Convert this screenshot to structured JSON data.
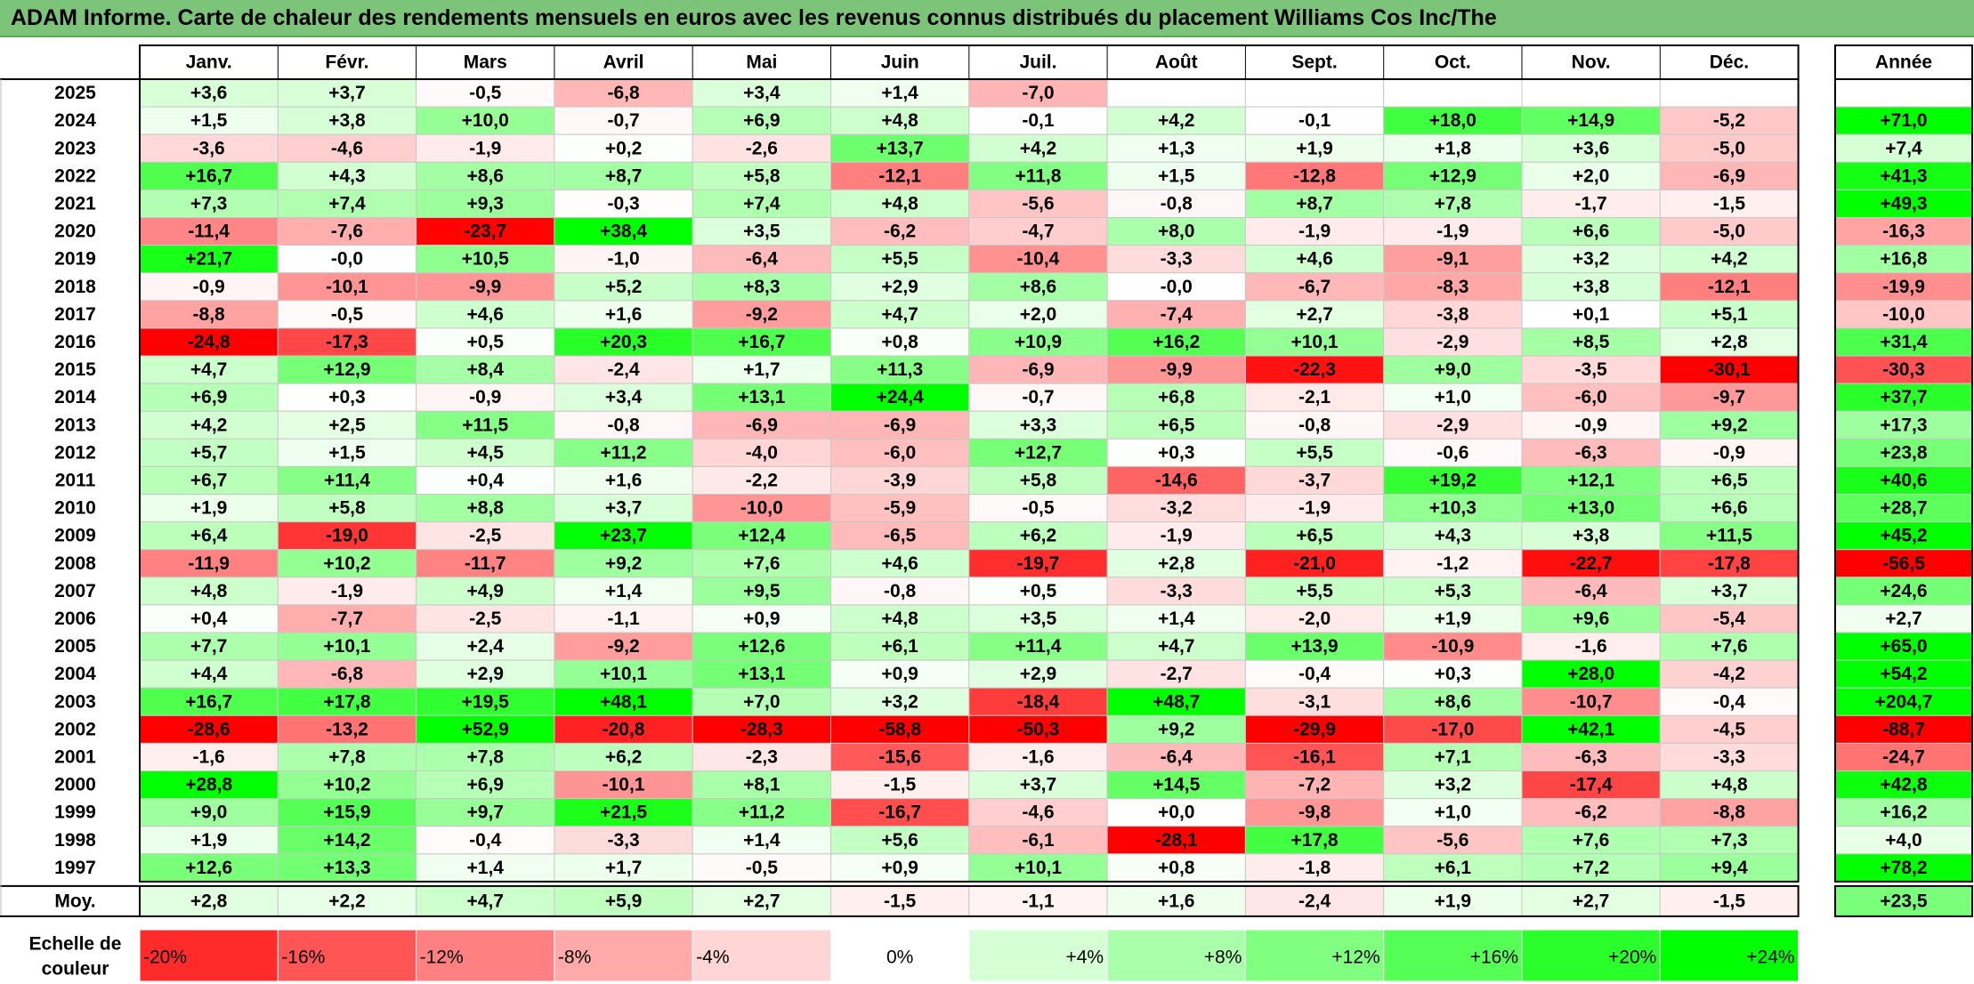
{
  "title": "ADAM Informe. Carte de chaleur des rendements mensuels en euros avec les revenus connus distribués du placement Williams Cos Inc/The",
  "colors": {
    "title_bar": "#7cc47a",
    "negative_max": "#ff0000",
    "neutral": "#ffffff",
    "positive_max": "#00ff00"
  },
  "chart_data": {
    "type": "heatmap",
    "title": "ADAM Informe. Carte de chaleur des rendements mensuels en euros avec les revenus connus distribués du placement Williams Cos Inc/The",
    "months": [
      "Janv.",
      "Févr.",
      "Mars",
      "Avril",
      "Mai",
      "Juin",
      "Juil.",
      "Août",
      "Sept.",
      "Oct.",
      "Nov.",
      "Déc."
    ],
    "year_header": "Année",
    "rows": [
      {
        "year": "2025",
        "values": [
          "+3,6",
          "+3,7",
          "-0,5",
          "-6,8",
          "+3,4",
          "+1,4",
          "-7,0",
          "",
          "",
          "",
          "",
          ""
        ],
        "annual": ""
      },
      {
        "year": "2024",
        "values": [
          "+1,5",
          "+3,8",
          "+10,0",
          "-0,7",
          "+6,9",
          "+4,8",
          "-0,1",
          "+4,2",
          "-0,1",
          "+18,0",
          "+14,9",
          "-5,2"
        ],
        "annual": "+71,0"
      },
      {
        "year": "2023",
        "values": [
          "-3,6",
          "-4,6",
          "-1,9",
          "+0,2",
          "-2,6",
          "+13,7",
          "+4,2",
          "+1,3",
          "+1,9",
          "+1,8",
          "+3,6",
          "-5,0"
        ],
        "annual": "+7,4"
      },
      {
        "year": "2022",
        "values": [
          "+16,7",
          "+4,3",
          "+8,6",
          "+8,7",
          "+5,8",
          "-12,1",
          "+11,8",
          "+1,5",
          "-12,8",
          "+12,9",
          "+2,0",
          "-6,9"
        ],
        "annual": "+41,3"
      },
      {
        "year": "2021",
        "values": [
          "+7,3",
          "+7,4",
          "+9,3",
          "-0,3",
          "+7,4",
          "+4,8",
          "-5,6",
          "-0,8",
          "+8,7",
          "+7,8",
          "-1,7",
          "-1,5"
        ],
        "annual": "+49,3"
      },
      {
        "year": "2020",
        "values": [
          "-11,4",
          "-7,6",
          "-23,7",
          "+38,4",
          "+3,5",
          "-6,2",
          "-4,7",
          "+8,0",
          "-1,9",
          "-1,9",
          "+6,6",
          "-5,0"
        ],
        "annual": "-16,3"
      },
      {
        "year": "2019",
        "values": [
          "+21,7",
          "-0,0",
          "+10,5",
          "-1,0",
          "-6,4",
          "+5,5",
          "-10,4",
          "-3,3",
          "+4,6",
          "-9,1",
          "+3,2",
          "+4,2"
        ],
        "annual": "+16,8"
      },
      {
        "year": "2018",
        "values": [
          "-0,9",
          "-10,1",
          "-9,9",
          "+5,2",
          "+8,3",
          "+2,9",
          "+8,6",
          "-0,0",
          "-6,7",
          "-8,3",
          "+3,8",
          "-12,1"
        ],
        "annual": "-19,9"
      },
      {
        "year": "2017",
        "values": [
          "-8,8",
          "-0,5",
          "+4,6",
          "+1,6",
          "-9,2",
          "+4,7",
          "+2,0",
          "-7,4",
          "+2,7",
          "-3,8",
          "+0,1",
          "+5,1"
        ],
        "annual": "-10,0"
      },
      {
        "year": "2016",
        "values": [
          "-24,8",
          "-17,3",
          "+0,5",
          "+20,3",
          "+16,7",
          "+0,8",
          "+10,9",
          "+16,2",
          "+10,1",
          "-2,9",
          "+8,5",
          "+2,8"
        ],
        "annual": "+31,4"
      },
      {
        "year": "2015",
        "values": [
          "+4,7",
          "+12,9",
          "+8,4",
          "-2,4",
          "+1,7",
          "+11,3",
          "-6,9",
          "-9,9",
          "-22,3",
          "+9,0",
          "-3,5",
          "-30,1"
        ],
        "annual": "-30,3"
      },
      {
        "year": "2014",
        "values": [
          "+6,9",
          "+0,3",
          "-0,9",
          "+3,4",
          "+13,1",
          "+24,4",
          "-0,7",
          "+6,8",
          "-2,1",
          "+1,0",
          "-6,0",
          "-9,7"
        ],
        "annual": "+37,7"
      },
      {
        "year": "2013",
        "values": [
          "+4,2",
          "+2,5",
          "+11,5",
          "-0,8",
          "-6,9",
          "-6,9",
          "+3,3",
          "+6,5",
          "-0,8",
          "-2,9",
          "-0,9",
          "+9,2"
        ],
        "annual": "+17,3"
      },
      {
        "year": "2012",
        "values": [
          "+5,7",
          "+1,5",
          "+4,5",
          "+11,2",
          "-4,0",
          "-6,0",
          "+12,7",
          "+0,3",
          "+5,5",
          "-0,6",
          "-6,3",
          "-0,9"
        ],
        "annual": "+23,8"
      },
      {
        "year": "2011",
        "values": [
          "+6,7",
          "+11,4",
          "+0,4",
          "+1,6",
          "-2,2",
          "-3,9",
          "+5,8",
          "-14,6",
          "-3,7",
          "+19,2",
          "+12,1",
          "+6,5"
        ],
        "annual": "+40,6"
      },
      {
        "year": "2010",
        "values": [
          "+1,9",
          "+5,8",
          "+8,8",
          "+3,7",
          "-10,0",
          "-5,9",
          "-0,5",
          "-3,2",
          "-1,9",
          "+10,3",
          "+13,0",
          "+6,6"
        ],
        "annual": "+28,7"
      },
      {
        "year": "2009",
        "values": [
          "+6,4",
          "-19,0",
          "-2,5",
          "+23,7",
          "+12,4",
          "-6,5",
          "+6,2",
          "-1,9",
          "+6,5",
          "+4,3",
          "+3,8",
          "+11,5"
        ],
        "annual": "+45,2"
      },
      {
        "year": "2008",
        "values": [
          "-11,9",
          "+10,2",
          "-11,7",
          "+9,2",
          "+7,6",
          "+4,6",
          "-19,7",
          "+2,8",
          "-21,0",
          "-1,2",
          "-22,7",
          "-17,8"
        ],
        "annual": "-56,5"
      },
      {
        "year": "2007",
        "values": [
          "+4,8",
          "-1,9",
          "+4,9",
          "+1,4",
          "+9,5",
          "-0,8",
          "+0,5",
          "-3,3",
          "+5,5",
          "+5,3",
          "-6,4",
          "+3,7"
        ],
        "annual": "+24,6"
      },
      {
        "year": "2006",
        "values": [
          "+0,4",
          "-7,7",
          "-2,5",
          "-1,1",
          "+0,9",
          "+4,8",
          "+3,5",
          "+1,4",
          "-2,0",
          "+1,9",
          "+9,6",
          "-5,4"
        ],
        "annual": "+2,7"
      },
      {
        "year": "2005",
        "values": [
          "+7,7",
          "+10,1",
          "+2,4",
          "-9,2",
          "+12,6",
          "+6,1",
          "+11,4",
          "+4,7",
          "+13,9",
          "-10,9",
          "-1,6",
          "+7,6"
        ],
        "annual": "+65,0"
      },
      {
        "year": "2004",
        "values": [
          "+4,4",
          "-6,8",
          "+2,9",
          "+10,1",
          "+13,1",
          "+0,9",
          "+2,9",
          "-2,7",
          "-0,4",
          "+0,3",
          "+28,0",
          "-4,2"
        ],
        "annual": "+54,2"
      },
      {
        "year": "2003",
        "values": [
          "+16,7",
          "+17,8",
          "+19,5",
          "+48,1",
          "+7,0",
          "+3,2",
          "-18,4",
          "+48,7",
          "-3,1",
          "+8,6",
          "-10,7",
          "-0,4"
        ],
        "annual": "+204,7"
      },
      {
        "year": "2002",
        "values": [
          "-28,6",
          "-13,2",
          "+52,9",
          "-20,8",
          "-28,3",
          "-58,8",
          "-50,3",
          "+9,2",
          "-29,9",
          "-17,0",
          "+42,1",
          "-4,5"
        ],
        "annual": "-88,7"
      },
      {
        "year": "2001",
        "values": [
          "-1,6",
          "+7,8",
          "+7,8",
          "+6,2",
          "-2,3",
          "-15,6",
          "-1,6",
          "-6,4",
          "-16,1",
          "+7,1",
          "-6,3",
          "-3,3"
        ],
        "annual": "-24,7"
      },
      {
        "year": "2000",
        "values": [
          "+28,8",
          "+10,2",
          "+6,9",
          "-10,1",
          "+8,1",
          "-1,5",
          "+3,7",
          "+14,5",
          "-7,2",
          "+3,2",
          "-17,4",
          "+4,8"
        ],
        "annual": "+42,8"
      },
      {
        "year": "1999",
        "values": [
          "+9,0",
          "+15,9",
          "+9,7",
          "+21,5",
          "+11,2",
          "-16,7",
          "-4,6",
          "+0,0",
          "-9,8",
          "+1,0",
          "-6,2",
          "-8,8"
        ],
        "annual": "+16,2"
      },
      {
        "year": "1998",
        "values": [
          "+1,9",
          "+14,2",
          "-0,4",
          "-3,3",
          "+1,4",
          "+5,6",
          "-6,1",
          "-28,1",
          "+17,8",
          "-5,6",
          "+7,6",
          "+7,3"
        ],
        "annual": "+4,0"
      },
      {
        "year": "1997",
        "values": [
          "+12,6",
          "+13,3",
          "+1,4",
          "+1,7",
          "-0,5",
          "+0,9",
          "+10,1",
          "+0,8",
          "-1,8",
          "+6,1",
          "+7,2",
          "+9,4"
        ],
        "annual": "+78,2"
      }
    ],
    "average": {
      "label": "Moy.",
      "values": [
        "+2,8",
        "+2,2",
        "+4,7",
        "+5,9",
        "+2,7",
        "-1,5",
        "-1,1",
        "+1,6",
        "-2,4",
        "+1,9",
        "+2,7",
        "-1,5"
      ],
      "annual": "+23,5"
    },
    "scale": {
      "label_line1": "Echelle de",
      "label_line2": "couleur",
      "steps": [
        "-20%",
        "-16%",
        "-12%",
        "-8%",
        "-4%",
        "0%",
        "+4%",
        "+8%",
        "+12%",
        "+16%",
        "+20%",
        "+24%"
      ],
      "step_values": [
        -20,
        -16,
        -12,
        -8,
        -4,
        0,
        4,
        8,
        12,
        16,
        20,
        24
      ]
    }
  }
}
